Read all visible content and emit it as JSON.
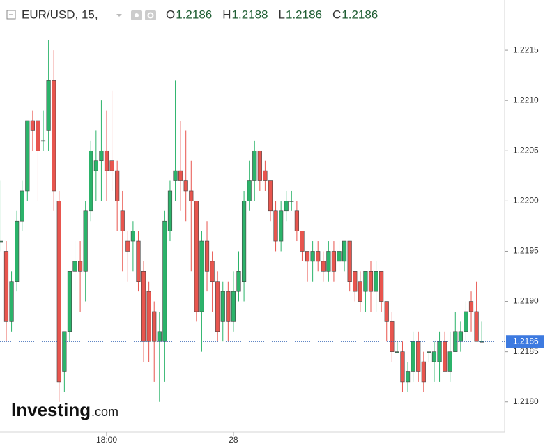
{
  "chart_data": {
    "type": "candlestick",
    "header": {
      "symbol": "EUR/USD, 15,",
      "ohlc_labels": [
        "O",
        "H",
        "L",
        "C"
      ],
      "ohlc_values": [
        1.2186,
        1.2188,
        1.2186,
        1.2186
      ]
    },
    "logo": [
      "Investing",
      ".com"
    ],
    "up_color": "#2bb36a",
    "down_color": "#e8554e",
    "categories": [
      null,
      null,
      null,
      null,
      null,
      null,
      null,
      null,
      null,
      null,
      null,
      null,
      null,
      null,
      null,
      null,
      null,
      null,
      null,
      null,
      "18:00",
      null,
      null,
      null,
      null,
      null,
      null,
      null,
      null,
      null,
      null,
      null,
      null,
      null,
      null,
      null,
      null,
      null,
      null,
      null,
      null,
      null,
      null,
      null,
      "28",
      null,
      null,
      null,
      null,
      null,
      null,
      null,
      null,
      null,
      null,
      null,
      null,
      null,
      null,
      null,
      null,
      null,
      null,
      null,
      null,
      null,
      null,
      null,
      null,
      null,
      null,
      null,
      null,
      null,
      null,
      null,
      null,
      null,
      null,
      null,
      null,
      null,
      null,
      null,
      null,
      null,
      null,
      null,
      null,
      null,
      null,
      null
    ],
    "open": [
      1.2196,
      1.2195,
      1.2188,
      1.2192,
      1.2198,
      1.2201,
      1.2208,
      1.2208,
      1.2206,
      1.2207,
      1.2212,
      1.22,
      1.2183,
      1.2187,
      1.2193,
      1.2194,
      1.2193,
      1.2199,
      1.2203,
      1.2204,
      1.2205,
      1.2204,
      1.2203,
      1.2199,
      1.2196,
      1.2196,
      1.2196,
      1.2193,
      1.2191,
      1.2189,
      1.2186,
      1.2186,
      1.2197,
      1.2202,
      1.2203,
      1.2202,
      1.2201,
      1.22,
      1.2189,
      1.2196,
      1.2194,
      1.2192,
      1.2188,
      1.2191,
      1.2188,
      1.2191,
      1.2192,
      1.22,
      1.2202,
      1.2205,
      1.2203,
      1.2202,
      1.2199,
      1.2196,
      1.2199,
      1.22,
      1.2199,
      1.2197,
      1.2195,
      1.2194,
      1.2195,
      1.2194,
      1.2193,
      1.2195,
      1.2194,
      1.2194,
      1.2196,
      1.2193,
      1.2192,
      1.2191,
      1.2193,
      1.2191,
      1.2193,
      1.219,
      1.2188,
      1.2185,
      1.2185,
      1.2182,
      1.2183,
      1.2186,
      1.2184,
      1.2185,
      1.2184,
      1.2184,
      1.2186,
      1.2183,
      1.2185,
      1.2186,
      1.2187,
      1.219,
      1.2189,
      1.2186
    ],
    "high": [
      1.2202,
      1.2196,
      1.2193,
      1.2199,
      1.2202,
      1.2208,
      1.2209,
      1.2208,
      1.2209,
      1.2216,
      1.2215,
      1.2201,
      1.2187,
      1.2193,
      1.2196,
      1.2196,
      1.22,
      1.2206,
      1.2207,
      1.221,
      1.2209,
      1.2211,
      1.2204,
      1.2201,
      1.2197,
      1.2198,
      1.2197,
      1.2194,
      1.2192,
      1.219,
      1.2189,
      1.2199,
      1.2202,
      1.2212,
      1.2208,
      1.2207,
      1.2204,
      1.22,
      1.2197,
      1.2198,
      1.2195,
      1.2193,
      1.2192,
      1.2192,
      1.2193,
      1.2195,
      1.2201,
      1.2204,
      1.2206,
      1.2205,
      1.2204,
      1.2202,
      1.22,
      1.22,
      1.2201,
      1.2201,
      1.22,
      1.2197,
      1.2195,
      1.2196,
      1.2196,
      1.2195,
      1.2196,
      1.2196,
      1.2196,
      1.2196,
      1.2196,
      1.2193,
      1.2193,
      1.2193,
      1.2194,
      1.2194,
      1.2193,
      1.219,
      1.2189,
      1.2186,
      1.2186,
      1.2184,
      1.2187,
      1.2187,
      1.2185,
      1.2185,
      1.2186,
      1.2187,
      1.2187,
      1.2187,
      1.2189,
      1.2188,
      1.219,
      1.2191,
      1.2192,
      1.2188
    ],
    "low": [
      1.2195,
      1.2186,
      1.2187,
      1.2191,
      1.2197,
      1.22,
      1.2205,
      1.22,
      1.2205,
      1.2205,
      1.2199,
      1.218,
      1.2181,
      1.2186,
      1.2191,
      1.2189,
      1.219,
      1.2198,
      1.22,
      1.22,
      1.22,
      1.2201,
      1.2197,
      1.2193,
      1.2192,
      1.2193,
      1.2191,
      1.2184,
      1.2184,
      1.2182,
      1.218,
      1.2182,
      1.2196,
      1.22,
      1.2199,
      1.2198,
      1.2193,
      1.2188,
      1.2185,
      1.2191,
      1.2189,
      1.2186,
      1.2186,
      1.2186,
      1.2187,
      1.219,
      1.219,
      1.2199,
      1.22,
      1.2201,
      1.2201,
      1.2198,
      1.2195,
      1.2195,
      1.2198,
      1.2199,
      1.2196,
      1.2194,
      1.2192,
      1.2192,
      1.2193,
      1.2192,
      1.2192,
      1.2192,
      1.2193,
      1.2193,
      1.2191,
      1.219,
      1.2189,
      1.2189,
      1.2189,
      1.2189,
      1.2189,
      1.2186,
      1.2184,
      1.2185,
      1.2181,
      1.2181,
      1.2182,
      1.2182,
      1.2181,
      1.2184,
      1.2182,
      1.2182,
      1.2183,
      1.2182,
      1.2185,
      1.2185,
      1.2186,
      1.2187,
      1.2186,
      1.2186
    ],
    "close": [
      1.2196,
      1.2188,
      1.2192,
      1.2198,
      1.2201,
      1.2208,
      1.2207,
      1.2205,
      1.2206,
      1.2212,
      1.2201,
      1.2182,
      1.2187,
      1.2193,
      1.2194,
      1.2193,
      1.2199,
      1.2205,
      1.2204,
      1.2205,
      1.2203,
      1.2203,
      1.22,
      1.2197,
      1.2195,
      1.2197,
      1.2192,
      1.2186,
      1.2186,
      1.2186,
      1.2187,
      1.2198,
      1.2201,
      1.2203,
      1.2202,
      1.2201,
      1.22,
      1.2189,
      1.2196,
      1.2193,
      1.2192,
      1.2187,
      1.2191,
      1.2188,
      1.2191,
      1.2193,
      1.22,
      1.2202,
      1.2205,
      1.2202,
      1.2202,
      1.2199,
      1.2196,
      1.2199,
      1.22,
      1.22,
      1.2197,
      1.2195,
      1.2194,
      1.2195,
      1.2194,
      1.2193,
      1.2195,
      1.2193,
      1.2195,
      1.2196,
      1.2192,
      1.2191,
      1.219,
      1.2193,
      1.2191,
      1.2193,
      1.219,
      1.2188,
      1.2185,
      1.2185,
      1.2182,
      1.2183,
      1.2186,
      1.2183,
      1.2182,
      1.2185,
      1.2185,
      1.2186,
      1.2183,
      1.2185,
      1.2187,
      1.2187,
      1.2189,
      1.2189,
      1.2186,
      1.2186
    ],
    "ylim": [
      1.2177,
      1.222
    ],
    "yticks": [
      {
        "value": 1.218,
        "label": "1.2180"
      },
      1.2185,
      {
        "value": 1.219,
        "label": "1.2190"
      },
      1.2195,
      {
        "value": 1.22,
        "label": "1.2200"
      },
      1.2205,
      {
        "value": 1.221,
        "label": "1.2210"
      },
      1.2215
    ]
  }
}
